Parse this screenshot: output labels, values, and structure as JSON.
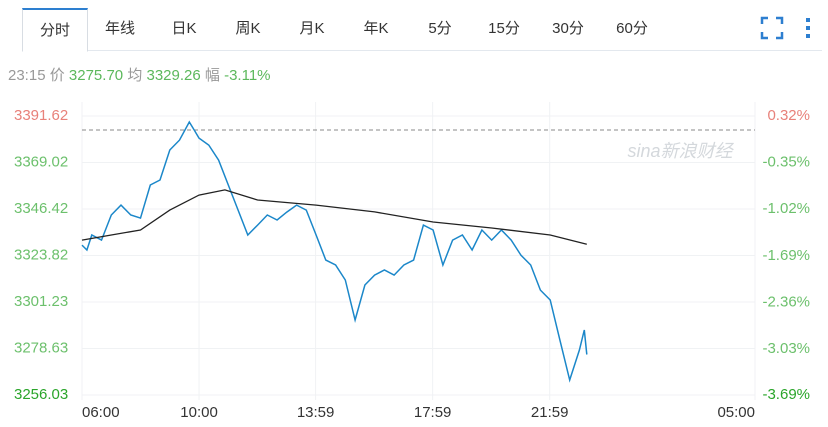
{
  "tabs": [
    "分时",
    "年线",
    "日K",
    "周K",
    "月K",
    "年K",
    "5分",
    "15分",
    "30分",
    "60分"
  ],
  "info": {
    "time": "23:15",
    "price_label": "价",
    "price": "3275.70",
    "avg_label": "均",
    "avg": "3329.26",
    "change_label": "幅",
    "change": "-3.11%"
  },
  "watermark": "sina新浪财经",
  "chart_data": {
    "type": "line",
    "xlim": [
      "06:00",
      "05:00"
    ],
    "xticks": [
      "06:00",
      "10:00",
      "13:59",
      "17:59",
      "21:59",
      "05:00"
    ],
    "ylim": [
      3256.03,
      3391.62
    ],
    "yticks": [
      3256.03,
      3278.63,
      3301.23,
      3323.82,
      3346.42,
      3369.02,
      3391.62
    ],
    "y2lim": [
      -3.69,
      0.32
    ],
    "y2ticks": [
      {
        "value": -3.69,
        "label": "-3.69%"
      },
      {
        "value": -3.03,
        "label": "-3.03%"
      },
      {
        "value": -2.36,
        "label": "-2.36%"
      },
      {
        "value": -1.69,
        "label": "-1.69%"
      },
      {
        "value": -1.02,
        "label": "-1.02%"
      },
      {
        "value": -0.35,
        "label": "-0.35%"
      },
      {
        "value": 0.32,
        "label": "0.32%"
      }
    ],
    "reference_line": 3384.8,
    "grid": true,
    "series": [
      {
        "name": "价",
        "color": "#1b87c9",
        "x": [
          "06:00",
          "06:10",
          "06:20",
          "06:40",
          "07:00",
          "07:20",
          "07:40",
          "08:00",
          "08:20",
          "08:40",
          "09:00",
          "09:20",
          "09:40",
          "09:50",
          "10:00",
          "10:20",
          "10:40",
          "11:00",
          "11:20",
          "11:40",
          "12:00",
          "12:20",
          "12:40",
          "13:00",
          "13:20",
          "13:40",
          "14:00",
          "14:20",
          "14:40",
          "15:00",
          "15:20",
          "15:40",
          "16:00",
          "16:20",
          "16:40",
          "17:00",
          "17:20",
          "17:40",
          "18:00",
          "18:20",
          "18:40",
          "19:00",
          "19:20",
          "19:40",
          "20:00",
          "20:20",
          "20:40",
          "21:00",
          "21:20",
          "21:40",
          "22:00",
          "22:20",
          "22:40",
          "23:00",
          "23:10",
          "23:15"
        ],
        "values": [
          3328.9,
          3326.5,
          3333.8,
          3331.3,
          3343.5,
          3348.3,
          3343.5,
          3342.0,
          3358.1,
          3360.5,
          3375.1,
          3379.9,
          3388.7,
          3384.8,
          3380.9,
          3377.5,
          3370.2,
          3358.1,
          3345.9,
          3333.8,
          3338.6,
          3343.5,
          3341.1,
          3344.9,
          3348.3,
          3345.9,
          3333.8,
          3321.6,
          3319.2,
          3311.9,
          3292.5,
          3309.5,
          3314.3,
          3316.8,
          3314.3,
          3319.2,
          3321.6,
          3338.6,
          3336.2,
          3319.2,
          3331.3,
          3333.8,
          3326.5,
          3336.2,
          3331.3,
          3336.2,
          3331.3,
          3324.0,
          3319.2,
          3307.0,
          3302.2,
          3282.7,
          3263.3,
          3277.9,
          3287.6,
          3275.7
        ]
      },
      {
        "name": "均",
        "color": "#222222",
        "x": [
          "06:00",
          "07:00",
          "08:00",
          "09:00",
          "10:00",
          "10:53",
          "12:00",
          "14:00",
          "16:00",
          "18:00",
          "20:00",
          "22:00",
          "23:15"
        ],
        "values": [
          3331.3,
          3333.8,
          3336.2,
          3345.9,
          3353.2,
          3355.7,
          3350.8,
          3348.3,
          3345.0,
          3340.1,
          3337.2,
          3333.8,
          3329.26
        ]
      }
    ]
  }
}
